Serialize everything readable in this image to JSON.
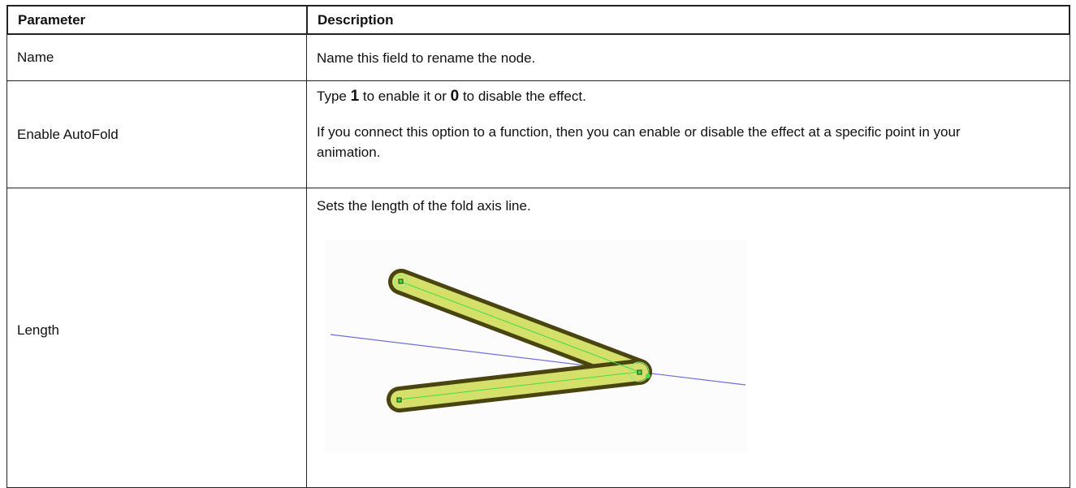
{
  "table": {
    "header": [
      "Parameter",
      "Description"
    ],
    "rows": [
      {
        "parameter": "Name",
        "description": [
          "Name this field to rename the node."
        ]
      },
      {
        "parameter": "Enable AutoFold",
        "description_parts": [
          "Type ",
          "1",
          " to enable it or ",
          "0",
          " to disable the effect."
        ],
        "description": [
          "If you connect this option to a function, then you can enable or disable the effect at a specific point in your animation."
        ]
      },
      {
        "parameter": "Length",
        "description": [
          "Sets the length of the fold axis line."
        ]
      }
    ]
  }
}
